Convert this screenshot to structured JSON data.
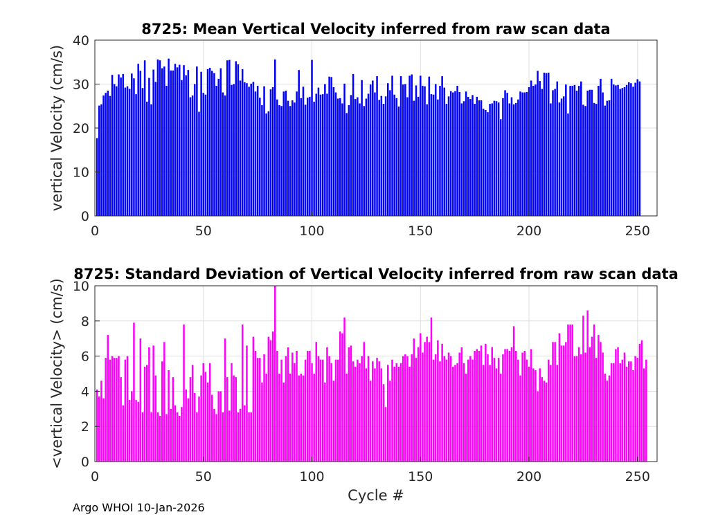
{
  "chart_data": [
    {
      "type": "bar",
      "title": "8725: Mean Vertical Velocity inferred from raw scan data",
      "xlabel": "",
      "ylabel": "vertical Velocity (cm/s)",
      "xlim": [
        0,
        259
      ],
      "ylim": [
        0,
        40
      ],
      "xticks": [
        0,
        50,
        100,
        150,
        200,
        250
      ],
      "yticks": [
        0,
        10,
        20,
        30,
        40
      ],
      "grid": true,
      "color": "#0000ff",
      "x_start": 1,
      "values": [
        17.7,
        25.1,
        25.4,
        27.4,
        28.0,
        28.5,
        27.3,
        32.1,
        30.0,
        29.5,
        32.2,
        31.5,
        32.3,
        29.2,
        29.5,
        28.9,
        32.4,
        31.3,
        27.7,
        34.6,
        33.0,
        29.1,
        35.4,
        26.0,
        31.4,
        25.4,
        33.3,
        30.5,
        35.6,
        35.4,
        33.6,
        34.0,
        29.6,
        35.8,
        33.1,
        33.1,
        34.6,
        33.8,
        34.4,
        30.9,
        34.3,
        32.0,
        33.2,
        27.0,
        27.4,
        30.0,
        34.0,
        23.7,
        32.8,
        28.0,
        27.6,
        33.4,
        33.7,
        33.0,
        32.5,
        29.6,
        31.2,
        33.6,
        28.1,
        27.4,
        35.4,
        35.5,
        29.8,
        30.0,
        35.2,
        34.5,
        30.8,
        33.4,
        30.4,
        30.2,
        29.4,
        30.1,
        30.5,
        28.3,
        29.6,
        26.9,
        25.2,
        29.5,
        23.3,
        23.8,
        28.8,
        29.3,
        35.6,
        26.5,
        25.2,
        25.0,
        28.3,
        28.5,
        26.2,
        25.0,
        26.3,
        25.8,
        28.3,
        33.2,
        26.8,
        29.4,
        25.3,
        26.9,
        27.1,
        35.5,
        26.0,
        27.8,
        29.2,
        27.6,
        27.7,
        30.0,
        27.8,
        31.7,
        31.6,
        29.3,
        28.1,
        26.7,
        26.8,
        25.6,
        30.1,
        23.4,
        25.2,
        27.5,
        32.3,
        26.6,
        27.0,
        25.6,
        30.9,
        25.0,
        26.7,
        27.8,
        29.9,
        30.8,
        28.1,
        31.8,
        26.4,
        27.3,
        25.5,
        27.2,
        30.2,
        28.6,
        31.9,
        27.6,
        26.8,
        24.9,
        31.8,
        29.9,
        30.0,
        27.0,
        31.9,
        32.2,
        26.2,
        29.7,
        27.1,
        31.9,
        29.6,
        29.5,
        25.4,
        31.7,
        27.7,
        27.6,
        30.0,
        26.5,
        29.6,
        31.8,
        29.2,
        25.5,
        27.2,
        28.4,
        28.1,
        28.4,
        29.6,
        28.2,
        25.6,
        26.1,
        28.3,
        27.1,
        26.6,
        27.5,
        25.5,
        27.1,
        26.3,
        26.3,
        24.4,
        24.1,
        23.6,
        25.5,
        25.6,
        26.2,
        26.1,
        25.8,
        22.0,
        26.8,
        28.6,
        28.0,
        25.6,
        27.0,
        25.4,
        25.7,
        26.5,
        28.3,
        28.1,
        28.1,
        28.2,
        29.3,
        30.8,
        29.6,
        29.9,
        33.0,
        30.7,
        28.9,
        32.6,
        32.5,
        32.6,
        25.6,
        28.6,
        28.9,
        30.6,
        25.8,
        26.7,
        27.2,
        29.9,
        23.3,
        29.6,
        29.6,
        29.8,
        28.5,
        29.6,
        30.6,
        25.3,
        25.0,
        28.5,
        28.7,
        28.7,
        25.7,
        25.5,
        29.6,
        31.2,
        28.1,
        25.1,
        26.2,
        26.3,
        31.2,
        29.9,
        29.7,
        29.8,
        28.9,
        29.1,
        29.3,
        29.8,
        30.4,
        30.2,
        29.4,
        30.3,
        31.1,
        30.6
      ]
    },
    {
      "type": "bar",
      "title": "8725: Standard Deviation of Vertical Velocity inferred from raw scan data",
      "xlabel": "Cycle #",
      "ylabel": "<vertical Velocity> (cm/s)",
      "xlim": [
        0,
        259
      ],
      "ylim": [
        0,
        10
      ],
      "xticks": [
        0,
        50,
        100,
        150,
        200,
        250
      ],
      "yticks": [
        0,
        2,
        4,
        6,
        8,
        10
      ],
      "grid": true,
      "color": "#ff00ff",
      "x_start": 1,
      "values": [
        4.1,
        3.7,
        4.6,
        3.6,
        5.9,
        7.2,
        5.8,
        6.0,
        5.9,
        5.9,
        6.0,
        4.8,
        3.2,
        5.8,
        6.0,
        3.5,
        4.0,
        7.9,
        3.5,
        3.4,
        7.0,
        2.8,
        5.4,
        5.5,
        6.5,
        2.8,
        6.6,
        4.9,
        2.8,
        2.6,
        5.7,
        6.8,
        2.7,
        5.2,
        3.0,
        4.8,
        3.2,
        2.8,
        2.6,
        3.1,
        7.8,
        4.1,
        3.6,
        4.8,
        5.5,
        3.9,
        2.8,
        3.7,
        4.9,
        5.6,
        5.1,
        4.5,
        5.6,
        3.8,
        3.0,
        2.7,
        4.0,
        4.0,
        2.8,
        7.0,
        4.8,
        2.9,
        5.6,
        4.9,
        4.8,
        2.8,
        3.0,
        7.8,
        3.2,
        6.6,
        2.8,
        2.8,
        7.1,
        6.3,
        5.9,
        5.9,
        4.5,
        6.1,
        5.0,
        7.1,
        6.9,
        7.4,
        10.1,
        6.3,
        5.0,
        5.8,
        4.5,
        6.0,
        6.5,
        5.0,
        6.2,
        5.6,
        6.3,
        4.9,
        5.0,
        4.9,
        5.8,
        6.3,
        6.3,
        5.6,
        5.0,
        6.8,
        6.0,
        5.8,
        5.8,
        4.5,
        6.5,
        6.0,
        5.6,
        4.6,
        5.8,
        5.8,
        7.4,
        7.3,
        8.2,
        5.0,
        6.5,
        6.6,
        5.7,
        5.4,
        5.8,
        5.6,
        6.0,
        6.8,
        5.3,
        6.0,
        4.6,
        5.7,
        5.3,
        5.9,
        5.7,
        5.3,
        4.4,
        3.1,
        5.5,
        4.6,
        5.8,
        5.4,
        5.6,
        5.4,
        5.6,
        6.0,
        6.1,
        6.0,
        5.4,
        6.1,
        7.0,
        5.9,
        6.5,
        7.3,
        6.2,
        6.8,
        7.1,
        6.8,
        8.2,
        5.8,
        6.1,
        6.9,
        5.7,
        6.7,
        6.0,
        5.8,
        6.2,
        6.0,
        5.4,
        5.5,
        5.6,
        6.2,
        6.5,
        5.6,
        5.0,
        5.8,
        6.0,
        5.8,
        6.3,
        6.4,
        6.3,
        6.6,
        5.5,
        6.7,
        6.1,
        5.5,
        6.5,
        5.9,
        5.3,
        5.9,
        5.0,
        6.1,
        6.4,
        6.4,
        6.3,
        6.5,
        7.7,
        6.3,
        5.8,
        4.9,
        6.2,
        6.3,
        5.8,
        5.4,
        6.4,
        5.3,
        5.2,
        4.0,
        5.3,
        4.8,
        4.6,
        4.5,
        5.8,
        5.5,
        6.8,
        6.8,
        5.5,
        7.3,
        6.6,
        6.6,
        6.8,
        7.8,
        7.8,
        7.8,
        6.0,
        6.0,
        6.5,
        6.1,
        8.3,
        6.2,
        8.6,
        6.5,
        7.1,
        7.8,
        5.9,
        7.2,
        6.8,
        6.2,
        5.0,
        4.6,
        4.9,
        5.6,
        5.6,
        6.4,
        6.5,
        5.6,
        5.8,
        6.2,
        5.4,
        5.7,
        5.7,
        5.2,
        6.0,
        5.9,
        6.7,
        6.9,
        5.3,
        5.8
      ]
    }
  ],
  "footer": "Argo WHOI 10-Jan-2026"
}
